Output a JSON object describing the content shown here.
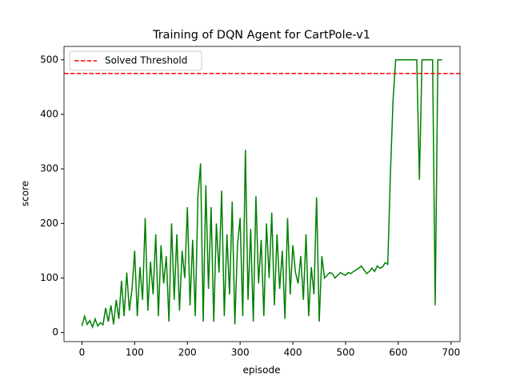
{
  "chart_data": {
    "type": "line",
    "title": "Training of DQN Agent for CartPole-v1",
    "xlabel": "episode",
    "ylabel": "score",
    "x": [
      0,
      5,
      10,
      15,
      20,
      25,
      30,
      35,
      40,
      45,
      50,
      55,
      60,
      65,
      70,
      75,
      80,
      85,
      90,
      95,
      100,
      105,
      110,
      115,
      120,
      125,
      130,
      135,
      140,
      145,
      150,
      155,
      160,
      165,
      170,
      175,
      180,
      185,
      190,
      195,
      200,
      205,
      210,
      215,
      220,
      225,
      230,
      235,
      240,
      245,
      250,
      255,
      260,
      265,
      270,
      275,
      280,
      285,
      290,
      295,
      300,
      305,
      310,
      315,
      320,
      325,
      330,
      335,
      340,
      345,
      350,
      355,
      360,
      365,
      370,
      375,
      380,
      385,
      390,
      395,
      400,
      405,
      410,
      415,
      420,
      425,
      430,
      435,
      440,
      445,
      450,
      455,
      460,
      465,
      470,
      475,
      480,
      485,
      490,
      495,
      500,
      505,
      510,
      515,
      520,
      525,
      530,
      535,
      540,
      545,
      550,
      555,
      560,
      565,
      570,
      575,
      580,
      585,
      590,
      595,
      600,
      605,
      610,
      615,
      620,
      625,
      630,
      635,
      640,
      645,
      650,
      655,
      660,
      665,
      670,
      675,
      680,
      683
    ],
    "series": [
      {
        "color": "green",
        "values": [
          12,
          30,
          15,
          22,
          10,
          25,
          12,
          18,
          14,
          45,
          20,
          50,
          15,
          60,
          25,
          95,
          30,
          110,
          40,
          80,
          150,
          30,
          120,
          60,
          210,
          40,
          130,
          70,
          180,
          30,
          160,
          90,
          140,
          20,
          200,
          60,
          180,
          40,
          150,
          100,
          230,
          50,
          170,
          30,
          250,
          310,
          20,
          270,
          80,
          230,
          20,
          200,
          110,
          260,
          30,
          180,
          70,
          240,
          15,
          160,
          210,
          30,
          335,
          60,
          190,
          20,
          250,
          90,
          170,
          30,
          200,
          100,
          220,
          50,
          180,
          80,
          150,
          25,
          210,
          70,
          160,
          110,
          90,
          140,
          60,
          180,
          30,
          120,
          70,
          248,
          20,
          140,
          100,
          105,
          110,
          108,
          100,
          105,
          110,
          107,
          105,
          110,
          108,
          112,
          115,
          118,
          122,
          115,
          108,
          112,
          118,
          112,
          122,
          118,
          120,
          128,
          125,
          290,
          425,
          500,
          500,
          500,
          500,
          500,
          500,
          500,
          500,
          500,
          280,
          500,
          500,
          500,
          500,
          500,
          50,
          500,
          500,
          500
        ]
      }
    ],
    "hlines": [
      {
        "name": "Solved Threshold",
        "value": 475,
        "color": "red"
      }
    ],
    "legend": "upper left",
    "xlim": [
      -34,
      717
    ],
    "xticks": [
      0,
      100,
      200,
      300,
      400,
      500,
      600,
      700
    ],
    "ylim": [
      -16.6,
      524.6
    ],
    "yticks": [
      0,
      100,
      200,
      300,
      400,
      500
    ]
  }
}
